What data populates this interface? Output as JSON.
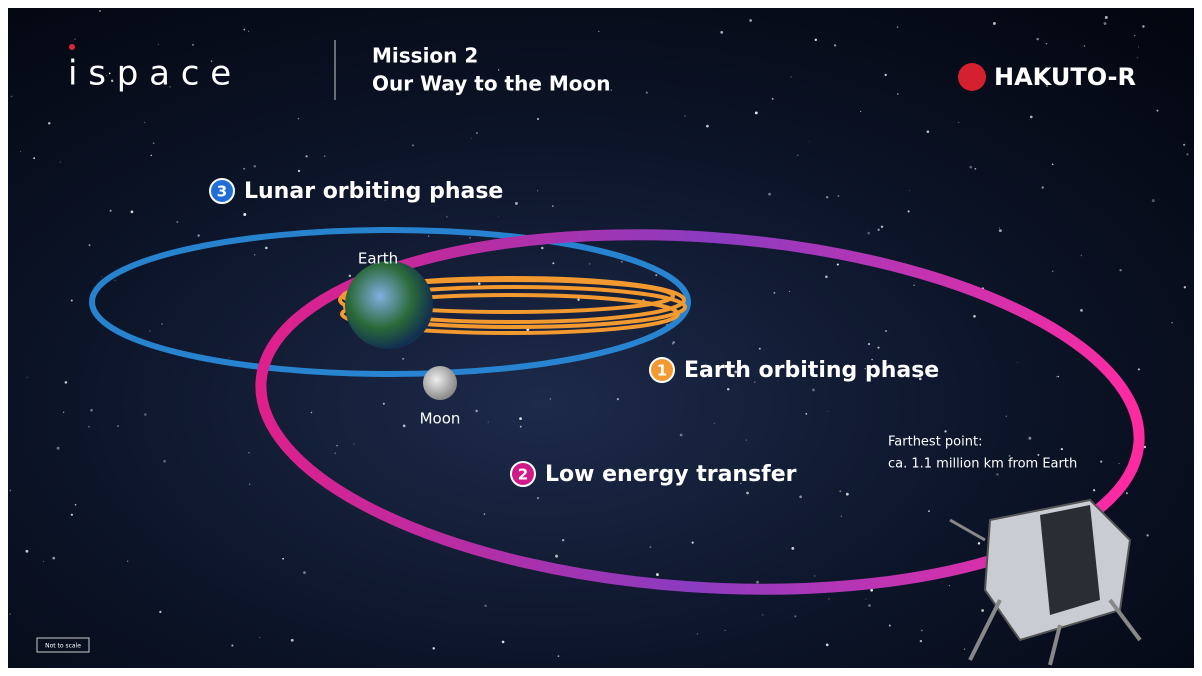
{
  "header": {
    "logo": "i s p a c e",
    "mission": "Mission 2",
    "subtitle": "Our Way to the Moon",
    "brand": "HAKUTO-R"
  },
  "phases": [
    {
      "number": "3",
      "label": "Lunar orbiting phase"
    },
    {
      "number": "1",
      "label": "Earth orbiting phase"
    },
    {
      "number": "2",
      "label": "Low energy transfer"
    }
  ],
  "bodies": {
    "earth": "Earth",
    "moon": "Moon"
  },
  "farthest": {
    "line1": "Farthest point:",
    "line2": "ca. 1.1 million km from Earth"
  },
  "note": "Not to scale"
}
